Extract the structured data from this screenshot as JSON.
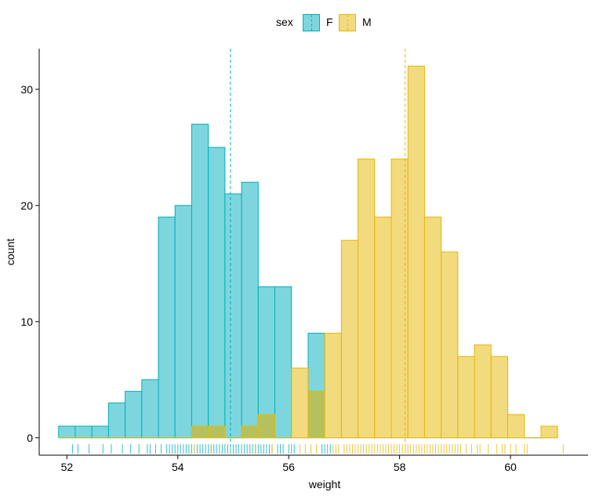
{
  "chart_data": {
    "type": "histogram",
    "title": "",
    "xlabel": "weight",
    "ylabel": "count",
    "xlim": [
      51.5,
      61.4
    ],
    "ylim": [
      -1.5,
      33.5
    ],
    "xticks": [
      52,
      54,
      56,
      58,
      60
    ],
    "yticks": [
      0,
      10,
      20,
      30
    ],
    "grid": false,
    "legend": {
      "title": "sex",
      "position": "top",
      "entries": [
        "F",
        "M"
      ]
    },
    "bin_width": 0.3,
    "bin_centers": [
      52.0,
      52.3,
      52.6,
      52.9,
      53.2,
      53.5,
      53.8,
      54.1,
      54.4,
      54.7,
      55.0,
      55.3,
      55.6,
      55.9,
      56.2,
      56.5,
      56.8,
      57.1,
      57.4,
      57.7,
      58.0,
      58.3,
      58.6,
      58.9,
      59.2,
      59.5,
      59.8,
      60.1,
      60.4,
      60.7
    ],
    "series": [
      {
        "name": "F",
        "color": "#00AFBB",
        "fill": "#7DD6DE",
        "mean": 54.95,
        "values": [
          1,
          1,
          1,
          3,
          4,
          5,
          19,
          20,
          27,
          25,
          21,
          22,
          13,
          13,
          0,
          9,
          0,
          0,
          0,
          0,
          0,
          0,
          0,
          0,
          0,
          0,
          0,
          0,
          0,
          0
        ]
      },
      {
        "name": "M",
        "color": "#E7B800",
        "fill": "#F2DA7E",
        "mean": 58.1,
        "values": [
          0,
          0,
          0,
          0,
          0,
          0,
          0,
          0,
          1,
          1,
          0,
          1,
          2,
          0,
          6,
          4,
          9,
          17,
          24,
          19,
          24,
          32,
          19,
          16,
          7,
          8,
          7,
          2,
          0,
          1
        ]
      }
    ],
    "overlap_color": "#B5C05E",
    "rug": {
      "F": [
        52.1,
        52.2,
        52.4,
        52.65,
        52.8,
        53.0,
        53.15,
        53.3,
        53.45,
        53.5,
        53.6,
        53.7,
        53.8,
        53.85,
        53.9,
        53.95,
        54.0,
        54.05,
        54.1,
        54.15,
        54.2,
        54.25,
        54.3,
        54.35,
        54.4,
        54.45,
        54.5,
        54.55,
        54.6,
        54.65,
        54.7,
        54.75,
        54.8,
        54.85,
        54.9,
        54.95,
        55.0,
        55.05,
        55.1,
        55.15,
        55.2,
        55.25,
        55.3,
        55.35,
        55.4,
        55.45,
        55.5,
        55.55,
        55.6,
        55.65,
        55.7,
        55.8,
        55.85,
        55.9,
        56.0,
        56.05,
        56.1,
        56.6,
        56.65,
        56.7,
        56.75
      ],
      "M": [
        54.3,
        54.6,
        55.4,
        55.7,
        56.2,
        56.3,
        56.4,
        56.5,
        56.8,
        56.85,
        56.9,
        57.0,
        57.05,
        57.1,
        57.15,
        57.2,
        57.25,
        57.3,
        57.35,
        57.4,
        57.45,
        57.5,
        57.55,
        57.6,
        57.65,
        57.7,
        57.75,
        57.8,
        57.85,
        57.9,
        57.95,
        58.0,
        58.05,
        58.1,
        58.15,
        58.2,
        58.25,
        58.3,
        58.35,
        58.4,
        58.45,
        58.5,
        58.55,
        58.6,
        58.65,
        58.7,
        58.75,
        58.8,
        58.85,
        58.9,
        58.95,
        59.0,
        59.05,
        59.1,
        59.2,
        59.3,
        59.4,
        59.45,
        59.6,
        59.75,
        59.85,
        59.9,
        60.0,
        60.1,
        60.25,
        60.3,
        60.95
      ]
    }
  }
}
